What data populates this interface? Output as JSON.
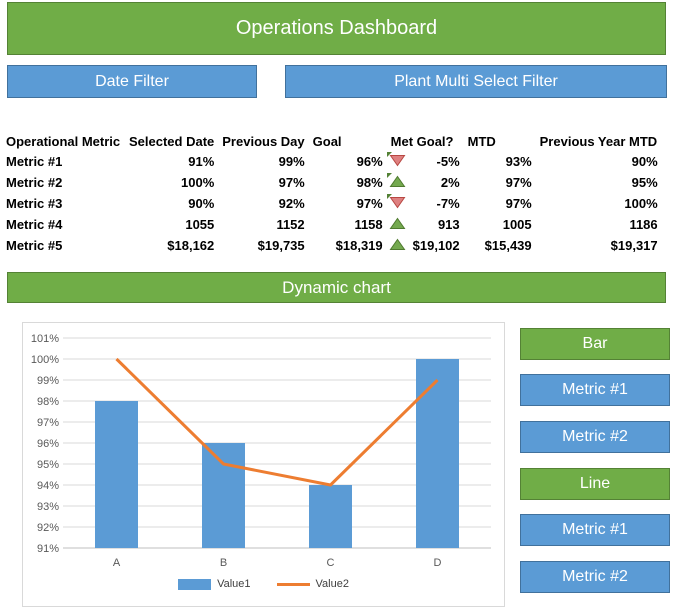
{
  "header": {
    "title": "Operations Dashboard"
  },
  "filters": {
    "date_label": "Date Filter",
    "plant_label": "Plant Multi Select Filter"
  },
  "table": {
    "columns": [
      "Operational Metric",
      "Selected Date",
      "Previous Day",
      "Goal",
      "Met Goal?",
      "MTD",
      "Previous Year MTD"
    ],
    "rows": [
      {
        "metric": "Metric #1",
        "selected_date": "91%",
        "previous_day": "99%",
        "goal": "96%",
        "icon": "down-red-triangle-icon",
        "flag": true,
        "met_goal": "-5%",
        "mtd": "93%",
        "prev_year_mtd": "90%"
      },
      {
        "metric": "Metric #2",
        "selected_date": "100%",
        "previous_day": "97%",
        "goal": "98%",
        "icon": "up-green-triangle-icon",
        "flag": true,
        "met_goal": "2%",
        "mtd": "97%",
        "prev_year_mtd": "95%"
      },
      {
        "metric": "Metric #3",
        "selected_date": "90%",
        "previous_day": "92%",
        "goal": "97%",
        "icon": "down-red-triangle-icon",
        "flag": true,
        "met_goal": "-7%",
        "mtd": "97%",
        "prev_year_mtd": "100%"
      },
      {
        "metric": "Metric #4",
        "selected_date": "1055",
        "previous_day": "1152",
        "goal": "1158",
        "icon": "up-green-triangle-icon",
        "flag": false,
        "met_goal": "913",
        "mtd": "1005",
        "prev_year_mtd": "1186"
      },
      {
        "metric": "Metric #5",
        "selected_date": "$18,162",
        "previous_day": "$19,735",
        "goal": "$18,319",
        "icon": "up-green-triangle-icon",
        "flag": false,
        "met_goal": "$19,102",
        "mtd": "$15,439",
        "prev_year_mtd": "$19,317"
      }
    ]
  },
  "chart_banner": {
    "label": "Dynamic chart"
  },
  "chart_data": {
    "type": "combo-bar-line",
    "title": "Dynamic chart",
    "categories": [
      "A",
      "B",
      "C",
      "D"
    ],
    "series": [
      {
        "name": "Value1",
        "type": "bar",
        "color": "#5B9BD5",
        "values": [
          98,
          96,
          94,
          100
        ]
      },
      {
        "name": "Value2",
        "type": "line",
        "color": "#ED7D31",
        "values": [
          100,
          95,
          94,
          99
        ]
      }
    ],
    "ylim": [
      91,
      101
    ],
    "ytick_step": 1,
    "ytick_format": "percent",
    "xlabel": "",
    "ylabel": "",
    "grid": true,
    "legend_position": "bottom"
  },
  "chart_controls": [
    {
      "label": "Bar",
      "variant": "green"
    },
    {
      "label": "Metric #1",
      "variant": "blue"
    },
    {
      "label": "Metric #2",
      "variant": "blue"
    },
    {
      "label": "Line",
      "variant": "green"
    },
    {
      "label": "Metric #1",
      "variant": "blue"
    },
    {
      "label": "Metric #2",
      "variant": "blue"
    }
  ],
  "colors": {
    "accent_green": "#70AD47",
    "accent_green_border": "#548235",
    "accent_blue": "#5B9BD5",
    "accent_blue_border": "#41719C",
    "bar_series": "#5B9BD5",
    "line_series": "#ED7D31",
    "up_icon_fill": "#74A94F",
    "up_icon_border": "#4F7A2F",
    "down_icon_fill": "#DE8080",
    "down_icon_border": "#B84742",
    "gridline": "#D9D9D9",
    "axis_line": "#BFBFBF"
  }
}
